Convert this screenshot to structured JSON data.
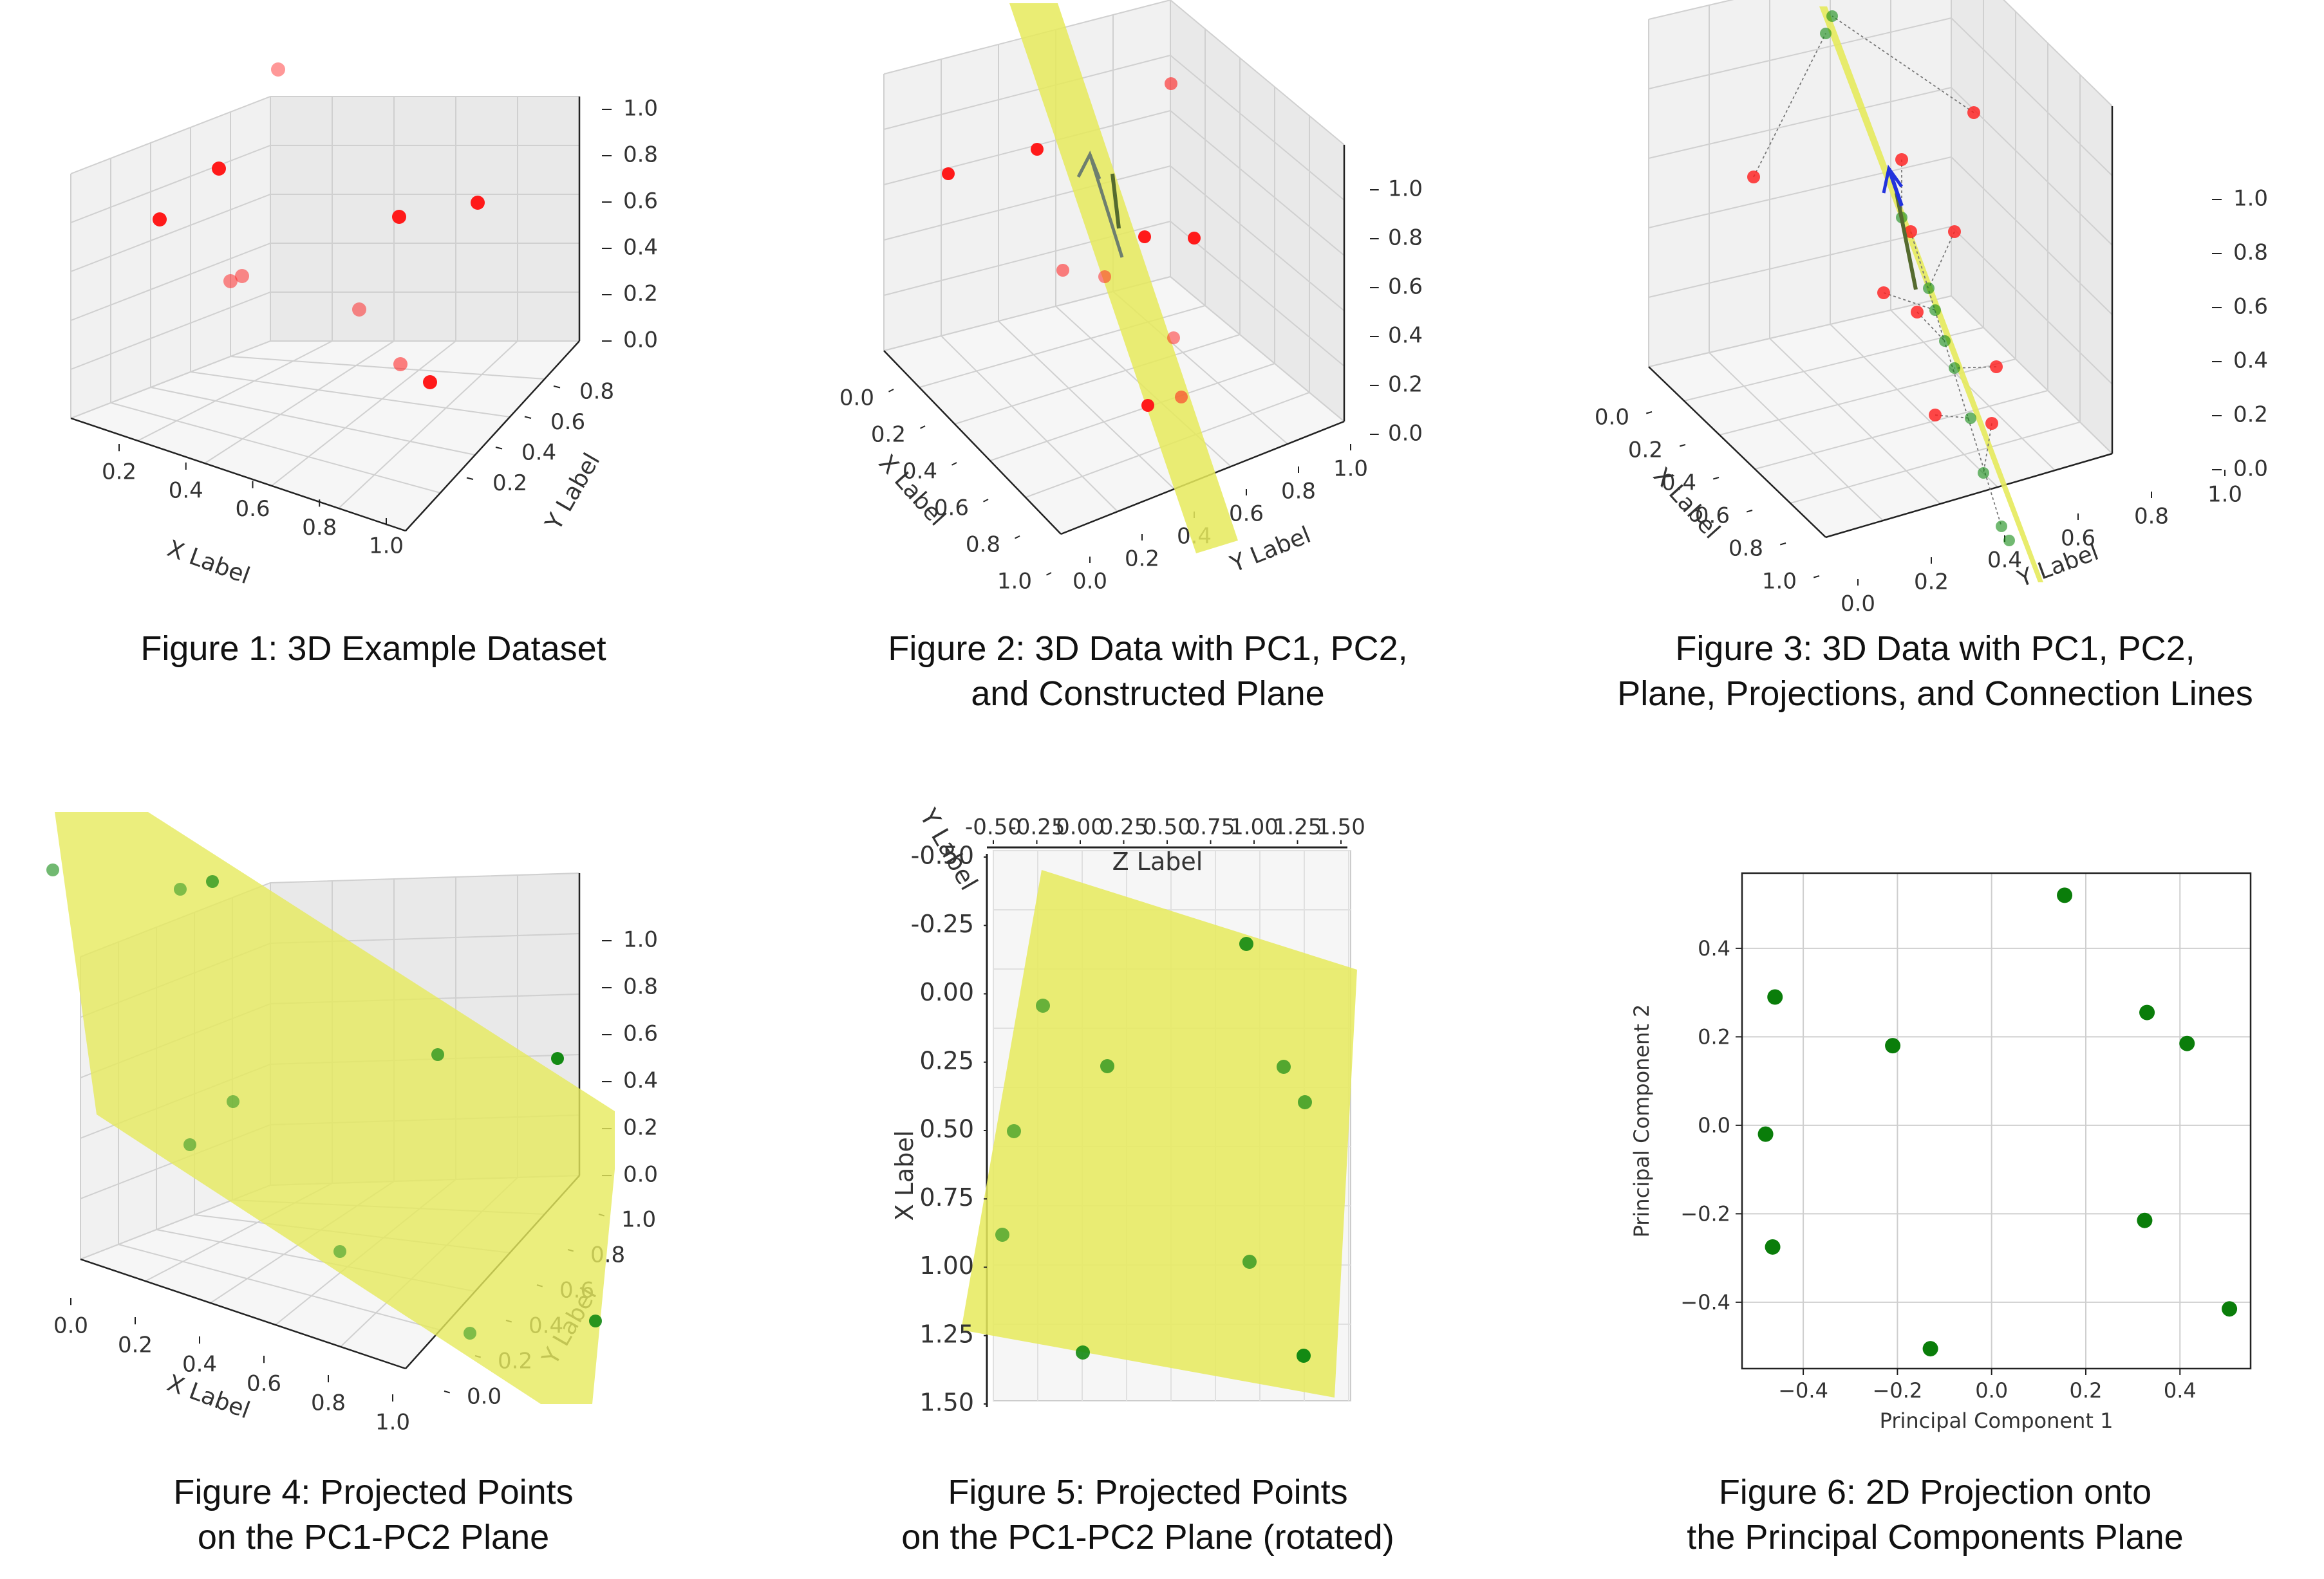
{
  "figures": [
    {
      "caption": [
        "Figure 1: 3D Example Dataset"
      ]
    },
    {
      "caption": [
        "Figure 2: 3D Data with PC1, PC2,",
        "and Constructed Plane"
      ]
    },
    {
      "caption": [
        "Figure 3: 3D Data with PC1, PC2,",
        "Plane, Projections, and Connection Lines"
      ]
    },
    {
      "caption": [
        "Figure 4: Projected Points",
        "on the PC1-PC2 Plane"
      ]
    },
    {
      "caption": [
        "Figure 5: Projected Points",
        "on the PC1-PC2 Plane (rotated)"
      ]
    },
    {
      "caption": [
        "Figure 6: 2D Projection onto",
        "the Principal Components Plane"
      ]
    }
  ],
  "colors": {
    "data_point": "#ff1a1a",
    "projected_point": "#138a13",
    "plane": "#e6ea5c",
    "pc1_arrow": "#556b2f",
    "pc2_arrow": "#2233dd",
    "grid": "#d0d0d0",
    "pane": "#f2f2f2"
  },
  "chart_data": [
    {
      "type": "scatter3d",
      "xlabel": "X Label",
      "ylabel": "Y Label",
      "zlabel": "",
      "x_ticks": [
        "0.2",
        "0.4",
        "0.6",
        "0.8",
        "1.0"
      ],
      "y_ticks": [
        "0.2",
        "0.4",
        "0.6",
        "0.8"
      ],
      "z_ticks": [
        "0.0",
        "0.2",
        "0.4",
        "0.6",
        "0.8",
        "1.0"
      ],
      "points": [
        [
          0.15,
          0.75,
          0.55
        ],
        [
          0.3,
          0.9,
          0.7
        ],
        [
          0.55,
          0.55,
          0.6
        ],
        [
          0.8,
          0.7,
          0.75
        ],
        [
          0.1,
          0.3,
          0.95
        ],
        [
          0.3,
          0.5,
          0.25
        ],
        [
          0.32,
          0.5,
          0.28
        ],
        [
          0.5,
          0.3,
          0.15
        ],
        [
          0.75,
          0.2,
          0.15
        ],
        [
          0.85,
          0.25,
          0.1
        ]
      ],
      "plane": false
    },
    {
      "type": "scatter3d",
      "xlabel": "X Label",
      "ylabel": "Y Label",
      "zlabel": "",
      "x_ticks": [
        "0.0",
        "0.2",
        "0.4",
        "0.6",
        "0.8",
        "1.0"
      ],
      "y_ticks": [
        "0.0",
        "0.2",
        "0.4",
        "0.6",
        "0.8",
        "1.0"
      ],
      "z_ticks": [
        "0.0",
        "0.2",
        "0.4",
        "0.6",
        "0.8",
        "1.0"
      ],
      "points": [
        [
          0.15,
          0.75,
          0.55
        ],
        [
          0.3,
          0.9,
          0.7
        ],
        [
          0.55,
          0.55,
          0.6
        ],
        [
          0.8,
          0.7,
          0.75
        ],
        [
          0.1,
          0.3,
          0.95
        ],
        [
          0.3,
          0.5,
          0.25
        ],
        [
          0.32,
          0.5,
          0.28
        ],
        [
          0.5,
          0.3,
          0.15
        ],
        [
          0.75,
          0.2,
          0.15
        ],
        [
          0.85,
          0.25,
          0.1
        ]
      ],
      "plane": true,
      "arrows": [
        "PC1",
        "PC2"
      ]
    },
    {
      "type": "scatter3d",
      "xlabel": "X Label",
      "ylabel": "Y Label",
      "zlabel": "",
      "x_ticks": [
        "0.0",
        "0.2",
        "0.4",
        "0.6",
        "0.8",
        "1.0"
      ],
      "y_ticks": [
        "0.0",
        "0.2",
        "0.4",
        "0.6",
        "0.8",
        "1.0"
      ],
      "z_ticks": [
        "0.0",
        "0.2",
        "0.4",
        "0.6",
        "0.8",
        "1.0"
      ],
      "points": [
        [
          0.15,
          0.75,
          0.55
        ],
        [
          0.3,
          0.9,
          0.7
        ],
        [
          0.55,
          0.55,
          0.6
        ],
        [
          0.8,
          0.7,
          0.75
        ],
        [
          0.1,
          0.3,
          0.95
        ],
        [
          0.3,
          0.5,
          0.25
        ],
        [
          0.32,
          0.5,
          0.28
        ],
        [
          0.5,
          0.3,
          0.15
        ],
        [
          0.75,
          0.2,
          0.15
        ],
        [
          0.85,
          0.25,
          0.1
        ]
      ],
      "plane": true,
      "arrows": [
        "PC1",
        "PC2"
      ],
      "projections": true,
      "connection_lines": true
    },
    {
      "type": "scatter3d",
      "xlabel": "X Label",
      "ylabel": "Y Label",
      "zlabel": "",
      "x_ticks": [
        "0.0",
        "0.2",
        "0.4",
        "0.6",
        "0.8",
        "1.0"
      ],
      "y_ticks": [
        "0.0",
        "0.2",
        "0.4",
        "0.6",
        "0.8",
        "1.0"
      ],
      "z_ticks": [
        "0.0",
        "0.2",
        "0.4",
        "0.6",
        "0.8",
        "1.0"
      ],
      "plane": true,
      "projected_points_only": true
    },
    {
      "type": "scatter3d",
      "view": "rotated, looking down the Y axis",
      "xlabel": "X Label",
      "ylabel": "Y Label",
      "zlabel": "Z Label",
      "x_ticks": [
        "-0.50",
        "-0.25",
        "0.00",
        "0.25",
        "0.50",
        "0.75",
        "1.00",
        "1.25",
        "1.50"
      ],
      "z_ticks": [
        "-0.50",
        "-0.25",
        "0.00",
        "0.25",
        "0.50",
        "0.75",
        "1.00",
        "1.25",
        "1.50"
      ],
      "plane": true,
      "projected_points_only": true
    },
    {
      "type": "scatter",
      "xlabel": "Principal Component 1",
      "ylabel": "Principal Component 2",
      "xlim": [
        -0.53,
        0.55
      ],
      "ylim": [
        -0.55,
        0.57
      ],
      "x_ticks": [
        -0.4,
        -0.2,
        0.0,
        0.2,
        0.4
      ],
      "y_ticks": [
        -0.4,
        -0.2,
        0.0,
        0.2,
        0.4
      ],
      "grid": true,
      "x": [
        0.155,
        -0.46,
        0.33,
        0.415,
        -0.21,
        -0.48,
        0.325,
        -0.465,
        -0.13,
        0.505
      ],
      "y": [
        0.52,
        0.29,
        0.255,
        0.185,
        0.18,
        -0.02,
        -0.215,
        -0.275,
        -0.505,
        -0.415
      ]
    }
  ]
}
